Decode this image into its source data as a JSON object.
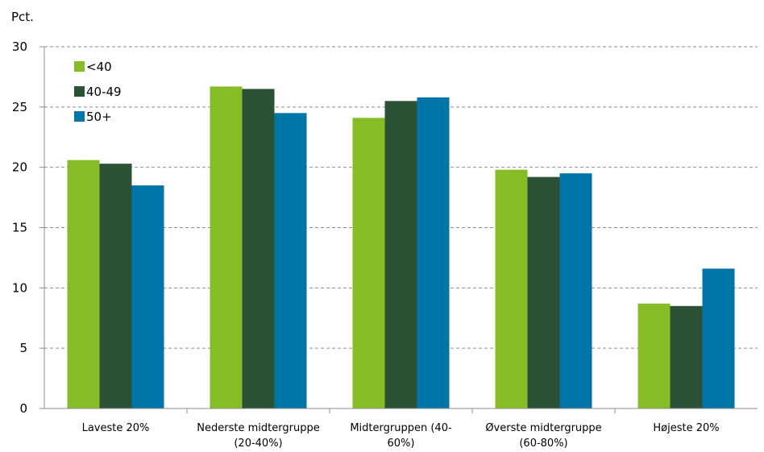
{
  "chart_data": {
    "type": "bar",
    "title": "",
    "xlabel": "",
    "ylabel": "Pct.",
    "ylim": [
      0,
      30
    ],
    "yticks": [
      0,
      5,
      10,
      15,
      20,
      25,
      30
    ],
    "grid": true,
    "legend_position": "top-left",
    "categories": [
      [
        "Laveste 20%"
      ],
      [
        "Nederste midtergruppe",
        "(20-40%)"
      ],
      [
        "Midtergruppen (40-",
        "60%)"
      ],
      [
        "Øverste midtergruppe",
        "(60-80%)"
      ],
      [
        "Højeste 20%"
      ]
    ],
    "series": [
      {
        "name": "<40",
        "color": "#86bc25",
        "values": [
          20.6,
          26.7,
          24.1,
          19.8,
          8.7
        ]
      },
      {
        "name": "40-49",
        "color": "#2b5234",
        "values": [
          20.3,
          26.5,
          25.5,
          19.2,
          8.5
        ]
      },
      {
        "name": "50+",
        "color": "#0076a8",
        "values": [
          18.5,
          24.5,
          25.8,
          19.5,
          11.6
        ]
      }
    ]
  }
}
